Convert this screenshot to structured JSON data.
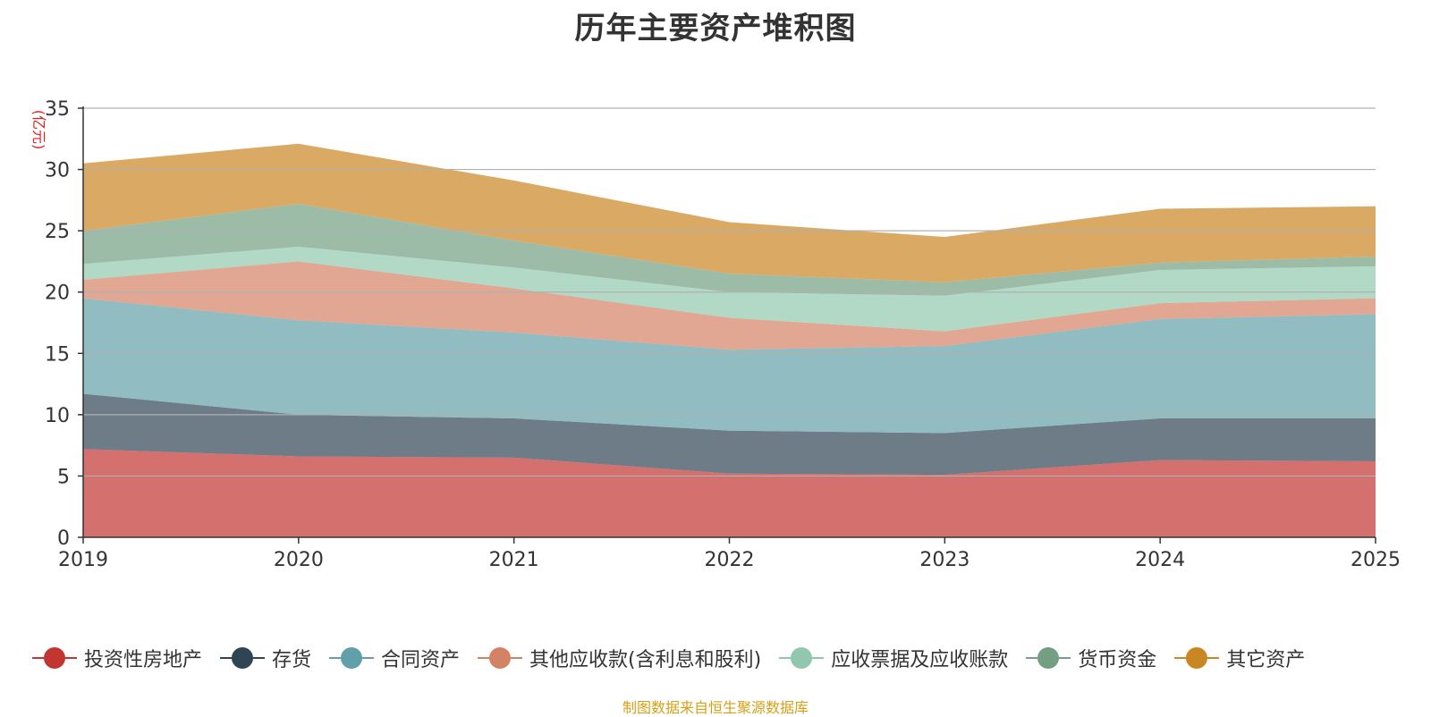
{
  "chart_data": {
    "type": "area",
    "stacked": true,
    "title": "历年主要资产堆积图",
    "ylabel": "(亿元)",
    "xlabel": "",
    "x": [
      "2019",
      "2020",
      "2021",
      "2022",
      "2023",
      "2024",
      "2025"
    ],
    "ylim": [
      0,
      35
    ],
    "yticks": [
      0,
      5,
      10,
      15,
      20,
      25,
      30,
      35
    ],
    "grid": true,
    "legend_position": "bottom",
    "series": [
      {
        "name": "投资性房地产",
        "color": "#c23531",
        "values": [
          7.2,
          6.6,
          6.5,
          5.2,
          5.1,
          6.3,
          6.2
        ]
      },
      {
        "name": "存货",
        "color": "#2f4554",
        "values": [
          4.5,
          3.4,
          3.2,
          3.5,
          3.4,
          3.4,
          3.5
        ]
      },
      {
        "name": "合同资产",
        "color": "#61a0a8",
        "values": [
          7.8,
          7.7,
          7.0,
          6.6,
          7.1,
          8.1,
          8.5
        ]
      },
      {
        "name": "其他应收款(含利息和股利)",
        "color": "#d48265",
        "values": [
          1.5,
          4.8,
          3.6,
          2.6,
          1.2,
          1.3,
          1.3
        ]
      },
      {
        "name": "应收票据及应收账款",
        "color": "#91c7ae",
        "values": [
          1.3,
          1.2,
          1.7,
          2.1,
          2.9,
          2.7,
          2.6
        ]
      },
      {
        "name": "货币资金",
        "color": "#749f83",
        "values": [
          2.7,
          3.5,
          2.2,
          1.5,
          1.1,
          0.6,
          0.8
        ]
      },
      {
        "name": "其它资产",
        "color": "#ca8622",
        "values": [
          5.5,
          4.9,
          4.9,
          4.2,
          3.7,
          4.4,
          4.1
        ]
      }
    ]
  },
  "footer": {
    "source": "制图数据来自恒生聚源数据库"
  }
}
